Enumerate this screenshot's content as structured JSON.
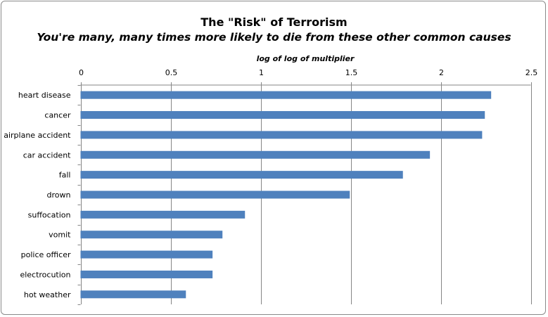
{
  "chart_data": {
    "type": "bar",
    "orientation": "horizontal",
    "title": "The \"Risk\" of Terrorism",
    "subtitle": "You're many, many times more likely to die from these other common causes",
    "xlabel": "log of log  of multiplier",
    "ylabel": "",
    "xlim": [
      0,
      2.5
    ],
    "xticks": [
      0,
      0.5,
      1,
      1.5,
      2,
      2.5
    ],
    "xtick_labels": [
      "0",
      "0.5",
      "1",
      "1.5",
      "2",
      "2.5"
    ],
    "xaxis_position": "top",
    "grid": true,
    "legend": "none",
    "categories": [
      "heart disease",
      "cancer",
      "airplane accident",
      "car accident",
      "fall",
      "drown",
      "suffocation",
      "vomit",
      "police officer",
      "electrocution",
      "hot weather"
    ],
    "values": [
      2.28,
      2.245,
      2.23,
      1.94,
      1.79,
      1.495,
      0.913,
      0.788,
      0.733,
      0.733,
      0.585
    ],
    "bar_color": "#4f81bd"
  }
}
